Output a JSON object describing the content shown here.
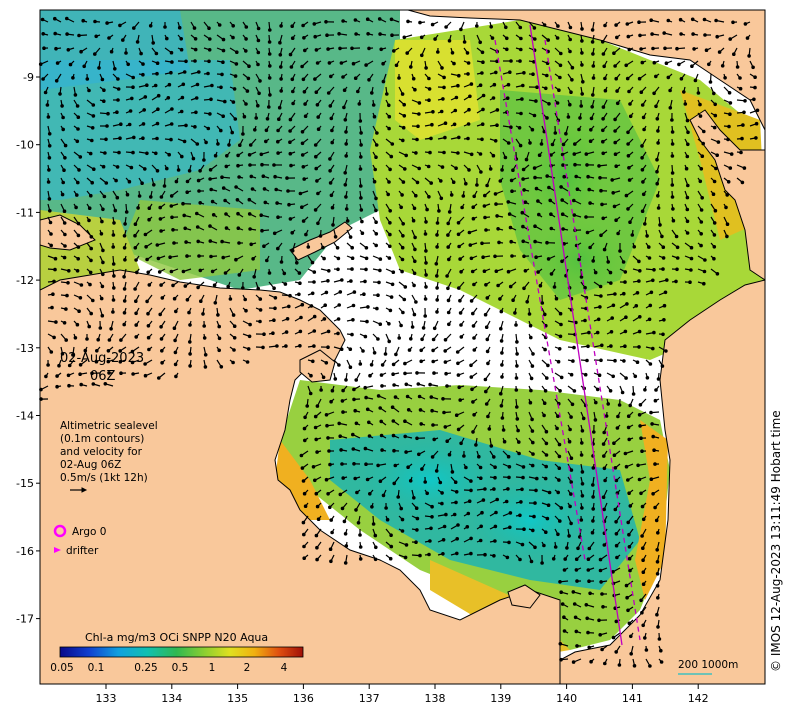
{
  "map": {
    "date": "02-Aug-2023",
    "time": "06Z",
    "lat_labels": [
      "9",
      "10",
      "11",
      "12",
      "13",
      "14",
      "15",
      "16",
      "17"
    ],
    "lon_labels": [
      "133",
      "134",
      "135",
      "136",
      "137",
      "138",
      "139",
      "140",
      "141",
      "142"
    ],
    "lat_display_prefix": "-",
    "legend_text": [
      "Altimetric sealevel",
      "(0.1m contours)",
      "and velocity for",
      "02-Aug 06Z",
      "0.5m/s (1kt 12h)"
    ],
    "argo_label": "Argo 0",
    "drifter_label": "drifter",
    "colorbar_title": "Chl-a mg/m3 OCi SNPP N20 Aqua",
    "colorbar_ticks": [
      "0.05",
      "0.1",
      "0.25",
      "0.5",
      "1",
      "2",
      "4"
    ],
    "scale_label": "200  1000m",
    "credit": "© IMOS 12-Aug-2023 13:11:49 Hobart time",
    "colors": {
      "land": "#f9c89b",
      "argo": "#ff00ff",
      "drifter": "#ff00ff",
      "track": "#c000c0",
      "scale_line": "#40c0c0"
    }
  }
}
